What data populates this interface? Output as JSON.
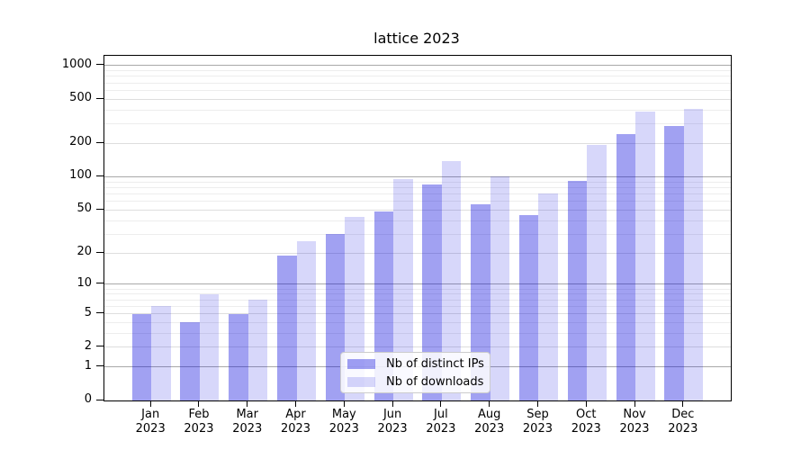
{
  "chart_data": {
    "type": "bar",
    "title": "lattice 2023",
    "categories": [
      {
        "month": "Jan",
        "year": "2023"
      },
      {
        "month": "Feb",
        "year": "2023"
      },
      {
        "month": "Mar",
        "year": "2023"
      },
      {
        "month": "Apr",
        "year": "2023"
      },
      {
        "month": "May",
        "year": "2023"
      },
      {
        "month": "Jun",
        "year": "2023"
      },
      {
        "month": "Jul",
        "year": "2023"
      },
      {
        "month": "Aug",
        "year": "2023"
      },
      {
        "month": "Sep",
        "year": "2023"
      },
      {
        "month": "Oct",
        "year": "2023"
      },
      {
        "month": "Nov",
        "year": "2023"
      },
      {
        "month": "Dec",
        "year": "2023"
      }
    ],
    "series": [
      {
        "key": "ips",
        "name": "Nb of distinct IPs",
        "color": "#a1a1f2",
        "fill": "rgba(0,0,220,0.37)",
        "values": [
          5,
          4,
          5,
          19,
          30,
          48,
          85,
          56,
          45,
          92,
          245,
          285
        ]
      },
      {
        "key": "downloads",
        "name": "Nb of downloads",
        "color": "#d7d7f9",
        "fill": "rgba(0,0,220,0.155)",
        "values": [
          6,
          8,
          7,
          26,
          43,
          95,
          138,
          100,
          70,
          195,
          385,
          410
        ]
      }
    ],
    "yscale": "log1p",
    "ylim": [
      0,
      1226
    ],
    "xlim": [
      -0.97,
      11.97
    ],
    "bar_width": 0.4,
    "y_ticks": [
      0,
      1,
      2,
      5,
      10,
      20,
      50,
      100,
      200,
      500,
      1000
    ],
    "y_tick_labels": [
      "0",
      "1",
      "2",
      "5",
      "10",
      "20",
      "50",
      "100",
      "200",
      "500",
      "1000"
    ],
    "grid": "both",
    "grid_colors": {
      "major": "#a9a9a9",
      "mid": "#dedede",
      "minor": "#ededed"
    },
    "legend_position": "lower-center"
  }
}
